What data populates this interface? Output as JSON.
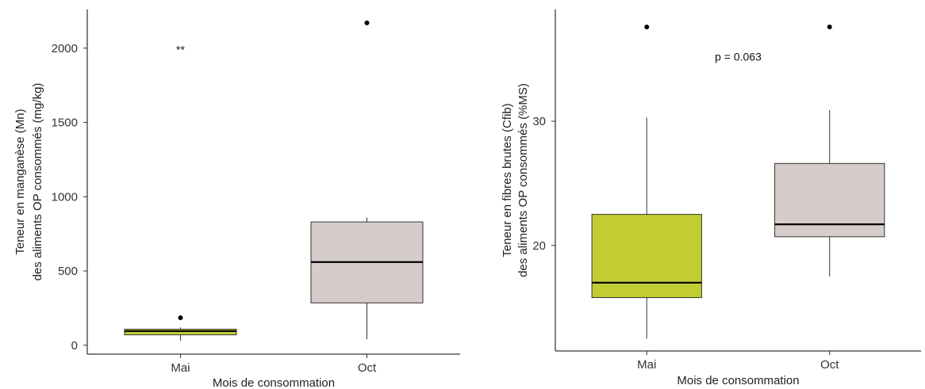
{
  "chart_data": [
    {
      "type": "boxplot",
      "categories": [
        "Mai",
        "Oct"
      ],
      "xlabel": "Mois de consommation",
      "ylabel_lines": [
        "Teneur en manganèse (Mn)",
        "des aliments OP consommés (mg/kg)"
      ],
      "ylim": [
        -60,
        2260
      ],
      "yticks": [
        0,
        500,
        1000,
        1500,
        2000
      ],
      "annotation": {
        "text": "**",
        "x": 1.0,
        "y": 1990
      },
      "grid": false,
      "boxes": [
        {
          "category": "Mai",
          "fill": "#c2cc33",
          "whisker_low": 30,
          "q1": 70,
          "median": 95,
          "q3": 108,
          "whisker_high": 120,
          "outliers": [
            185
          ]
        },
        {
          "category": "Oct",
          "fill": "#d6cdca",
          "whisker_low": 40,
          "q1": 285,
          "median": 560,
          "q3": 830,
          "whisker_high": 860,
          "outliers": [
            2170
          ]
        }
      ]
    },
    {
      "type": "boxplot",
      "categories": [
        "Mai",
        "Oct"
      ],
      "xlabel": "Mois de consommation",
      "ylabel_lines": [
        "Teneur en fibres brutes (Cfib)",
        "des aliments OP consommés (%MS)"
      ],
      "ylim": [
        11.5,
        39
      ],
      "yticks": [
        20,
        30
      ],
      "annotation": {
        "text": "p = 0.063",
        "x": 1.5,
        "y": 35.2
      },
      "grid": false,
      "boxes": [
        {
          "category": "Mai",
          "fill": "#c2cc33",
          "whisker_low": 12.5,
          "q1": 15.8,
          "median": 17.0,
          "q3": 22.5,
          "whisker_high": 30.3,
          "outliers": [
            37.6
          ]
        },
        {
          "category": "Oct",
          "fill": "#d6cdca",
          "whisker_low": 17.5,
          "q1": 20.7,
          "median": 21.7,
          "q3": 26.6,
          "whisker_high": 30.9,
          "outliers": [
            37.6
          ]
        }
      ]
    }
  ]
}
